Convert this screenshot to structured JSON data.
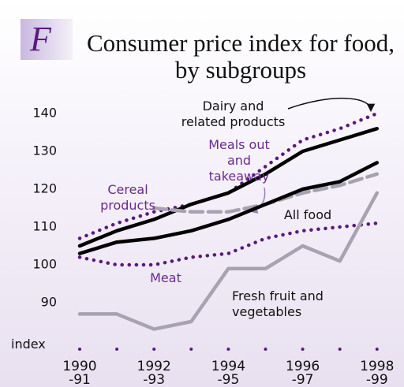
{
  "chart_data": {
    "type": "line",
    "title": "Consumer price index for food, by subgroups",
    "panel": "F",
    "y_label": "index",
    "categories": [
      "1990\n-91",
      null,
      "1992\n-93",
      null,
      "1994\n-95",
      null,
      "1996\n-97",
      null,
      "1998\n-99"
    ],
    "ylim": [
      79,
      147
    ],
    "yticks": [
      90,
      100,
      110,
      120,
      130,
      140
    ],
    "series": [
      {
        "name": "Dairy and related products",
        "color": "#5a1a7c",
        "style": "dotted",
        "values": [
          107,
          111,
          114,
          116,
          119,
          126,
          133,
          136,
          140
        ]
      },
      {
        "name": "Cereal products",
        "color": "#000000",
        "style": "solid",
        "values": [
          105,
          109,
          112,
          116,
          119,
          124,
          130,
          133,
          136
        ]
      },
      {
        "name": "Meals out and takeaway",
        "color": "#a8a2b0",
        "style": "dashed",
        "values": [
          null,
          null,
          115,
          114,
          114,
          116,
          119,
          121,
          124
        ]
      },
      {
        "name": "All food",
        "color": "#000000",
        "style": "solid",
        "values": [
          103,
          106,
          107,
          109,
          112,
          116,
          120,
          122,
          127
        ]
      },
      {
        "name": "Meat",
        "color": "#5a1a7c",
        "style": "dotted",
        "values": [
          102,
          100,
          100,
          102,
          103,
          107,
          109,
          110,
          111
        ]
      },
      {
        "name": "Fresh fruit and vegetables",
        "color": "#a8a2b0",
        "style": "solid",
        "values": [
          87,
          87,
          83,
          85,
          99,
          99,
          105,
          101,
          119
        ]
      }
    ]
  }
}
